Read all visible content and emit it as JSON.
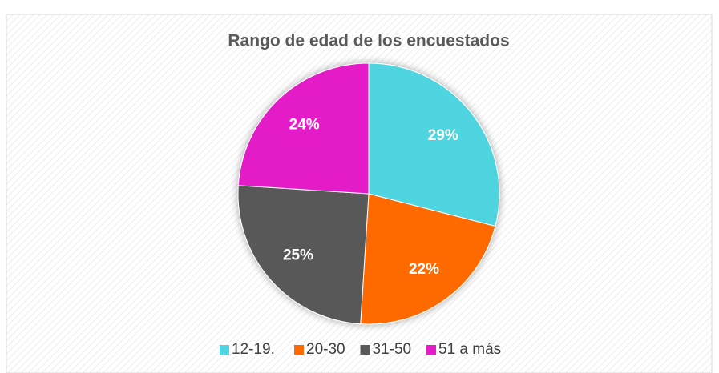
{
  "chart_data": {
    "type": "pie",
    "title": "Rango de edad de los encuestados",
    "categories": [
      "12-19.",
      "20-30",
      "31-50",
      "51 a más"
    ],
    "values": [
      29,
      22,
      25,
      24
    ],
    "value_labels": [
      "29%",
      "22%",
      "25%",
      "24%"
    ],
    "colors": [
      "#4fd5df",
      "#ff6a00",
      "#595959",
      "#e31ec8"
    ],
    "legend": "bottom"
  }
}
